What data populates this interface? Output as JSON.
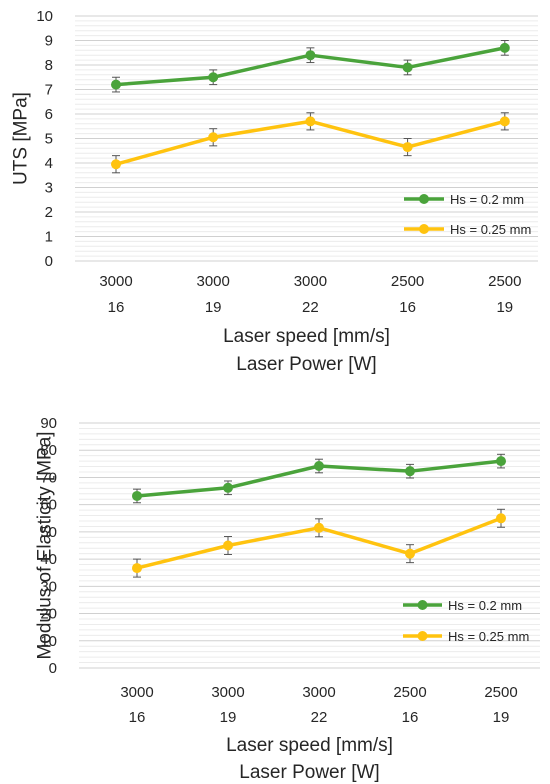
{
  "chart_data": [
    {
      "type": "line",
      "categories": [
        [
          "3000",
          "16"
        ],
        [
          "3000",
          "19"
        ],
        [
          "3000",
          "22"
        ],
        [
          "2500",
          "16"
        ],
        [
          "2500",
          "19"
        ]
      ],
      "xlabel": [
        "Laser speed [mm/s]",
        "Laser Power [W]"
      ],
      "ylabel": "UTS [MPa]",
      "ylim": [
        0,
        10
      ],
      "yticks": [
        "0",
        "1",
        "2",
        "3",
        "4",
        "5",
        "6",
        "7",
        "8",
        "9",
        "10"
      ],
      "grid": true,
      "legend": "bottom-right",
      "series": [
        {
          "name": "Hs = 0.2 mm",
          "color": "#4aa33b",
          "values": [
            7.2,
            7.5,
            8.4,
            7.9,
            8.7
          ],
          "errors": [
            0.3,
            0.3,
            0.3,
            0.3,
            0.3
          ]
        },
        {
          "name": "Hs = 0.25 mm",
          "color": "#ffc30f",
          "values": [
            3.95,
            5.05,
            5.7,
            4.65,
            5.7
          ],
          "errors": [
            0.35,
            0.35,
            0.35,
            0.35,
            0.35
          ]
        }
      ]
    },
    {
      "type": "line",
      "categories": [
        [
          "3000",
          "16"
        ],
        [
          "3000",
          "19"
        ],
        [
          "3000",
          "22"
        ],
        [
          "2500",
          "16"
        ],
        [
          "2500",
          "19"
        ]
      ],
      "xlabel": [
        "Laser speed [mm/s]",
        "Laser Power [W]"
      ],
      "ylabel": "Modulus of Elasticity [MPa]",
      "ylim": [
        0,
        90
      ],
      "yticks": [
        "0",
        "10",
        "20",
        "30",
        "40",
        "50",
        "60",
        "70",
        "80",
        "90"
      ],
      "grid": true,
      "legend": "bottom-right",
      "series": [
        {
          "name": "Hs = 0.2 mm",
          "color": "#4aa33b",
          "values": [
            63.2,
            66.2,
            74.2,
            72.3,
            76.0
          ],
          "errors": [
            2.5,
            2.5,
            2.5,
            2.5,
            2.5
          ]
        },
        {
          "name": "Hs = 0.25 mm",
          "color": "#ffc30f",
          "values": [
            36.7,
            45.0,
            51.5,
            42.0,
            55.0
          ],
          "errors": [
            3.3,
            3.3,
            3.3,
            3.3,
            3.3
          ]
        }
      ]
    }
  ]
}
